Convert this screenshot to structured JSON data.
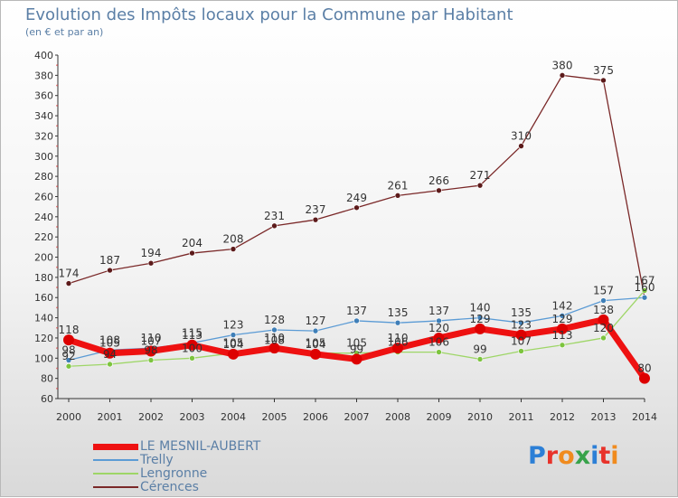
{
  "header": {
    "title": "Evolution des Impôts locaux pour la Commune par Habitant",
    "subtitle": "(en € et par an)"
  },
  "logo": {
    "text": "Proxiti"
  },
  "chart_data": {
    "type": "line",
    "title": "Evolution des Impôts locaux pour la Commune par Habitant",
    "subtitle": "(en € et par an)",
    "x": [
      2000,
      2001,
      2002,
      2003,
      2004,
      2005,
      2006,
      2007,
      2008,
      2009,
      2010,
      2011,
      2012,
      2013,
      2014
    ],
    "ylim": [
      60,
      400
    ],
    "yticks": [
      60,
      80,
      100,
      120,
      140,
      160,
      180,
      200,
      220,
      240,
      260,
      280,
      300,
      320,
      340,
      360,
      380,
      400
    ],
    "grid": false,
    "legend_position": "bottom-left",
    "series": [
      {
        "name": "Cérences",
        "color": "#7a2828",
        "marker": "#5c1a1a",
        "width": 1.3,
        "values": [
          174,
          187,
          194,
          204,
          208,
          231,
          237,
          249,
          261,
          266,
          271,
          310,
          380,
          375,
          160
        ],
        "labels": [
          "174",
          "187",
          "194",
          "204",
          "208",
          "231",
          "237",
          "249",
          "261",
          "266",
          "271",
          "310",
          "380",
          "375",
          "160"
        ]
      },
      {
        "name": "Trelly",
        "color": "#5b9bd5",
        "marker": "#3f7fb8",
        "width": 1.3,
        "values": [
          98,
          108,
          110,
          115,
          123,
          128,
          127,
          137,
          135,
          137,
          140,
          135,
          142,
          157,
          160
        ],
        "labels": [
          "98",
          "108",
          "110",
          "115",
          "123",
          "128",
          "127",
          "137",
          "135",
          "137",
          "140",
          "135",
          "142",
          "157",
          ""
        ]
      },
      {
        "name": "Lengronne",
        "color": "#9ed667",
        "marker": "#7cc43e",
        "width": 1.3,
        "values": [
          92,
          94,
          98,
          100,
          105,
          108,
          105,
          105,
          106,
          106,
          99,
          107,
          113,
          120,
          167
        ],
        "labels": [
          "92",
          "94",
          "98",
          "100",
          "105",
          "108",
          "105",
          "105",
          "106",
          "106",
          "99",
          "107",
          "113",
          "120",
          "167"
        ]
      },
      {
        "name": "LE MESNIL-AUBERT",
        "color": "#ee1111",
        "marker": "#dd0000",
        "width": 7,
        "values": [
          118,
          105,
          107,
          113,
          104,
          110,
          104,
          99,
          110,
          120,
          129,
          123,
          129,
          138,
          80
        ],
        "labels": [
          "118",
          "105",
          "107",
          "113",
          "104",
          "110",
          "104",
          "99",
          "110",
          "120",
          "129",
          "123",
          "129",
          "138",
          "80"
        ]
      }
    ]
  }
}
